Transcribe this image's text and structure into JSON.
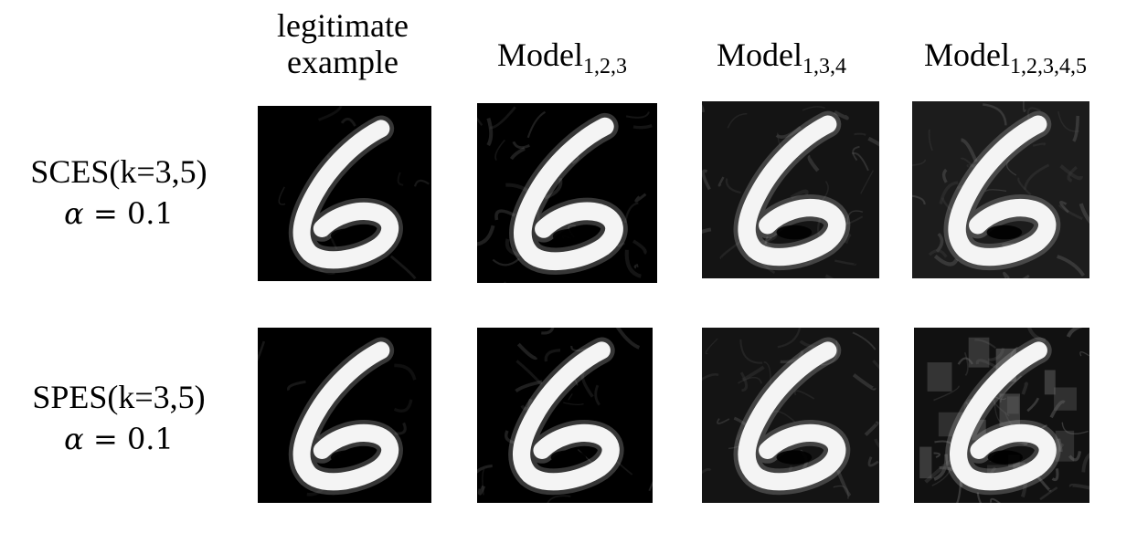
{
  "columns": [
    {
      "name": "legitimate",
      "line1": "legitimate",
      "line2": "example"
    },
    {
      "name": "model-123",
      "base": "Model",
      "sub": "1,2,3"
    },
    {
      "name": "model-134",
      "base": "Model",
      "sub": "1,3,4"
    },
    {
      "name": "model-12345",
      "base": "Model",
      "sub": "1,2,3,4,5"
    }
  ],
  "rows": [
    {
      "method": "SCES(k=3,5)",
      "alpha_symbol": "α",
      "alpha_rest": " = 0.1"
    },
    {
      "method": "SPES(k=3,5)",
      "alpha_symbol": "α",
      "alpha_rest": " = 0.1"
    }
  ],
  "images": {
    "digit": "6",
    "colors": {
      "background": "#000000",
      "stroke": "#f4f4f4",
      "noise": "#3a3a3a"
    }
  }
}
